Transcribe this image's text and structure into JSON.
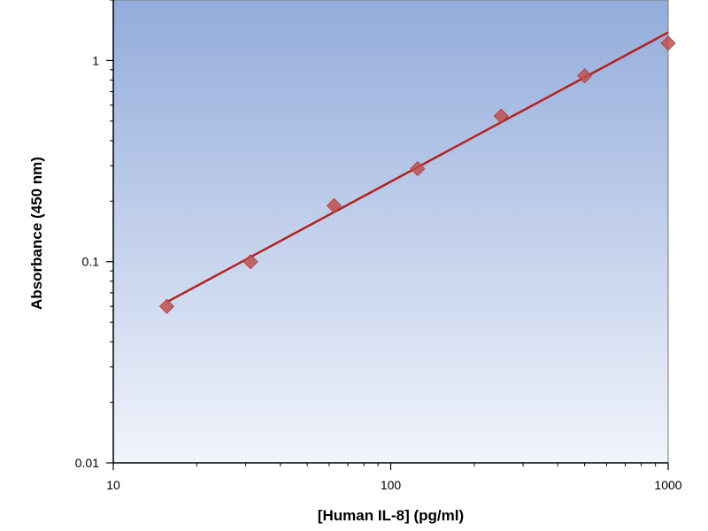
{
  "chart_data": {
    "type": "scatter",
    "title": "",
    "xlabel": "[Human IL-8] (pg/ml)",
    "ylabel": "Absorbance (450 nm)",
    "xscale": "log",
    "yscale": "log",
    "xlim": [
      10,
      1000
    ],
    "ylim": [
      0.01,
      2
    ],
    "grid": false,
    "legend": "none",
    "x_ticks": [
      "10",
      "100",
      "1000"
    ],
    "y_ticks": [
      "0.01",
      "0.1",
      "1"
    ],
    "series": [
      {
        "marker": "diamond",
        "color": "#c0504d",
        "x": [
          15.6,
          31.25,
          62.5,
          125,
          250,
          500,
          1000
        ],
        "y": [
          0.06,
          0.1,
          0.19,
          0.29,
          0.53,
          0.84,
          1.22
        ]
      }
    ],
    "fit_line": {
      "color": "#b22222",
      "x": [
        15.6,
        1000
      ],
      "y": [
        0.063,
        1.38
      ]
    },
    "colors": {
      "plot_bg_top": "#93acdb",
      "plot_bg_bottom": "#f1f4fb",
      "marker": "#c0504d",
      "fit": "#b22222"
    }
  }
}
